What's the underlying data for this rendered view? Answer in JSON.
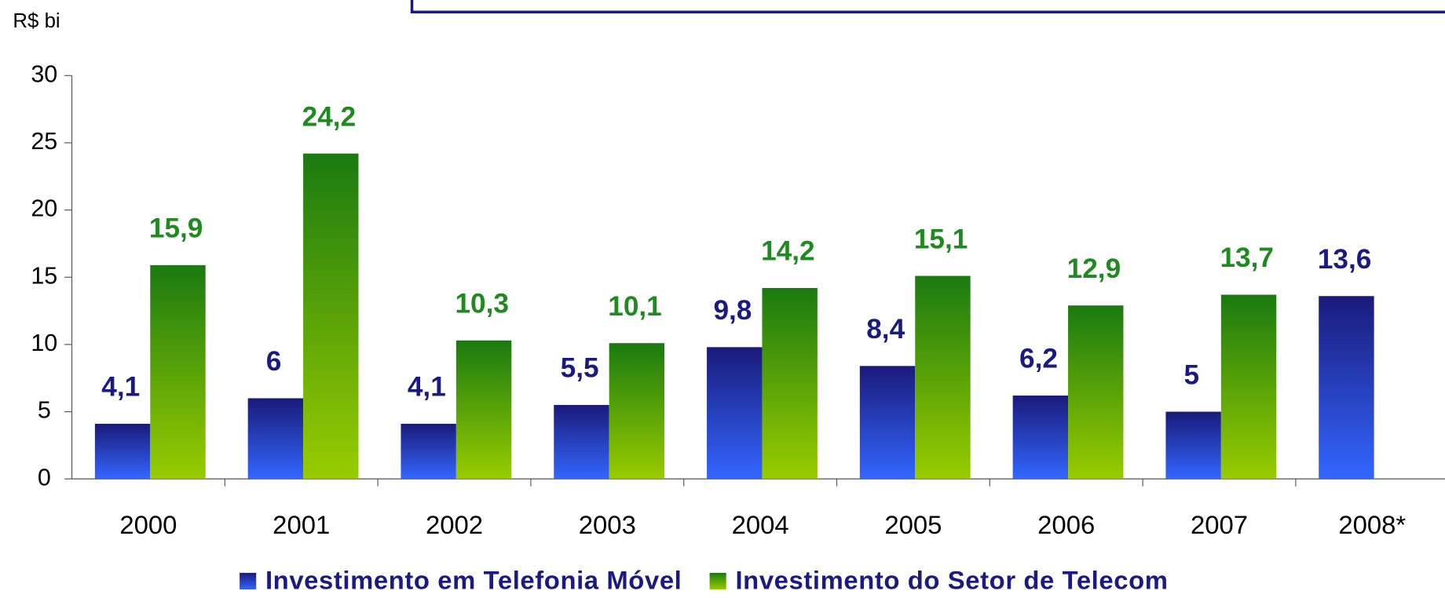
{
  "chart_data": {
    "type": "bar",
    "y_label": "R$ bi",
    "categories": [
      "2000",
      "2001",
      "2002",
      "2003",
      "2004",
      "2005",
      "2006",
      "2007",
      "2008*"
    ],
    "series": [
      {
        "name": "Investimento em Telefonia Móvel",
        "color": "#1a1a80",
        "values": [
          4.1,
          6,
          4.1,
          5.5,
          9.8,
          8.4,
          6.2,
          5,
          13.6
        ],
        "value_labels": [
          "4,1",
          "6",
          "4,1",
          "5,5",
          "9,8",
          "8,4",
          "6,2",
          "5",
          "13,6"
        ]
      },
      {
        "name": "Investimento do Setor de Telecom",
        "color": "#1f8a1f",
        "values": [
          15.9,
          24.2,
          10.3,
          10.1,
          14.2,
          15.1,
          12.9,
          13.7,
          null
        ],
        "value_labels": [
          "15,9",
          "24,2",
          "10,3",
          "10,1",
          "14,2",
          "15,1",
          "12,9",
          "13,7",
          null
        ]
      }
    ],
    "ylim": [
      0,
      30
    ],
    "yticks": [
      0,
      5,
      10,
      15,
      20,
      25,
      30
    ]
  }
}
